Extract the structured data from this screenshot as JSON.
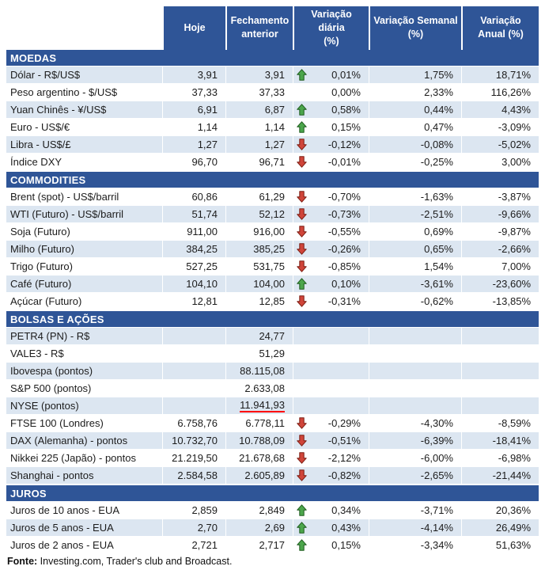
{
  "colors": {
    "header_bg": "#2F5597",
    "stripe_bg": "#DCE6F1",
    "arrow_up": "#4CA64C",
    "arrow_up_border": "#1E5C1E",
    "arrow_down": "#D0453A",
    "arrow_down_border": "#7C1D12",
    "underline_red": "#FF0000"
  },
  "table": {
    "columns": [
      "Hoje",
      "Fechamento\nanterior",
      "Variação diária\n(%)",
      "Variação Semanal\n(%)",
      "Variação\nAnual (%)"
    ],
    "sections": [
      {
        "title": "MOEDAS",
        "rows": [
          {
            "label": "Dólar - R$/US$",
            "hoje": "3,91",
            "fechamento": "3,91",
            "arrow": "up",
            "diaria": "0,01%",
            "semanal": "1,75%",
            "anual": "18,71%"
          },
          {
            "label": "Peso argentino - $/US$",
            "hoje": "37,33",
            "fechamento": "37,33",
            "arrow": "none",
            "diaria": "0,00%",
            "semanal": "2,33%",
            "anual": "116,26%"
          },
          {
            "label": "Yuan Chinês - ¥/US$",
            "hoje": "6,91",
            "fechamento": "6,87",
            "arrow": "up",
            "diaria": "0,58%",
            "semanal": "0,44%",
            "anual": "4,43%"
          },
          {
            "label": "Euro - US$/€",
            "hoje": "1,14",
            "fechamento": "1,14",
            "arrow": "up",
            "diaria": "0,15%",
            "semanal": "0,47%",
            "anual": "-3,09%"
          },
          {
            "label": "Libra - US$/£",
            "hoje": "1,27",
            "fechamento": "1,27",
            "arrow": "down",
            "diaria": "-0,12%",
            "semanal": "-0,08%",
            "anual": "-5,02%"
          },
          {
            "label": "Índice DXY",
            "hoje": "96,70",
            "fechamento": "96,71",
            "arrow": "down",
            "diaria": "-0,01%",
            "semanal": "-0,25%",
            "anual": "3,00%"
          }
        ]
      },
      {
        "title": "COMMODITIES",
        "rows": [
          {
            "label": "Brent (spot) - US$/barril",
            "hoje": "60,86",
            "fechamento": "61,29",
            "arrow": "down",
            "diaria": "-0,70%",
            "semanal": "-1,63%",
            "anual": "-3,87%"
          },
          {
            "label": "WTI (Futuro) - US$/barril",
            "hoje": "51,74",
            "fechamento": "52,12",
            "arrow": "down",
            "diaria": "-0,73%",
            "semanal": "-2,51%",
            "anual": "-9,66%"
          },
          {
            "label": "Soja (Futuro)",
            "hoje": "911,00",
            "fechamento": "916,00",
            "arrow": "down",
            "diaria": "-0,55%",
            "semanal": "0,69%",
            "anual": "-9,87%"
          },
          {
            "label": "Milho (Futuro)",
            "hoje": "384,25",
            "fechamento": "385,25",
            "arrow": "down",
            "diaria": "-0,26%",
            "semanal": "0,65%",
            "anual": "-2,66%"
          },
          {
            "label": "Trigo (Futuro)",
            "hoje": "527,25",
            "fechamento": "531,75",
            "arrow": "down",
            "diaria": "-0,85%",
            "semanal": "1,54%",
            "anual": "7,00%"
          },
          {
            "label": "Café (Futuro)",
            "hoje": "104,10",
            "fechamento": "104,00",
            "arrow": "up",
            "diaria": "0,10%",
            "semanal": "-3,61%",
            "anual": "-23,60%"
          },
          {
            "label": "Açúcar (Futuro)",
            "hoje": "12,81",
            "fechamento": "12,85",
            "arrow": "down",
            "diaria": "-0,31%",
            "semanal": "-0,62%",
            "anual": "-13,85%"
          }
        ]
      },
      {
        "title": "BOLSAS E AÇÕES",
        "rows": [
          {
            "label": "PETR4 (PN) - R$",
            "hoje": "",
            "fechamento": "24,77",
            "arrow": "none",
            "diaria": "",
            "semanal": "",
            "anual": ""
          },
          {
            "label": "VALE3 - R$",
            "hoje": "",
            "fechamento": "51,29",
            "arrow": "none",
            "diaria": "",
            "semanal": "",
            "anual": ""
          },
          {
            "label": "Ibovespa (pontos)",
            "hoje": "",
            "fechamento": "88.115,08",
            "arrow": "none",
            "diaria": "",
            "semanal": "",
            "anual": ""
          },
          {
            "label": "S&P 500 (pontos)",
            "hoje": "",
            "fechamento": "2.633,08",
            "arrow": "none",
            "diaria": "",
            "semanal": "",
            "anual": ""
          },
          {
            "label": "NYSE (pontos)",
            "hoje": "",
            "fechamento": "11.941,93",
            "arrow": "none",
            "diaria": "",
            "semanal": "",
            "anual": "",
            "underline": true
          },
          {
            "label": "FTSE 100 (Londres)",
            "hoje": "6.758,76",
            "fechamento": "6.778,11",
            "arrow": "down",
            "diaria": "-0,29%",
            "semanal": "-4,30%",
            "anual": "-8,59%"
          },
          {
            "label": "DAX (Alemanha) - pontos",
            "hoje": "10.732,70",
            "fechamento": "10.788,09",
            "arrow": "down",
            "diaria": "-0,51%",
            "semanal": "-6,39%",
            "anual": "-18,41%"
          },
          {
            "label": "Nikkei 225 (Japão) - pontos",
            "hoje": "21.219,50",
            "fechamento": "21.678,68",
            "arrow": "down",
            "diaria": "-2,12%",
            "semanal": "-6,00%",
            "anual": "-6,98%"
          },
          {
            "label": "Shanghai - pontos",
            "hoje": "2.584,58",
            "fechamento": "2.605,89",
            "arrow": "down",
            "diaria": "-0,82%",
            "semanal": "-2,65%",
            "anual": "-21,44%"
          }
        ]
      },
      {
        "title": "JUROS",
        "rows": [
          {
            "label": "Juros de 10 anos - EUA",
            "hoje": "2,859",
            "fechamento": "2,849",
            "arrow": "up",
            "diaria": "0,34%",
            "semanal": "-3,71%",
            "anual": "20,36%"
          },
          {
            "label": "Juros de 5 anos - EUA",
            "hoje": "2,70",
            "fechamento": "2,69",
            "arrow": "up",
            "diaria": "0,43%",
            "semanal": "-4,14%",
            "anual": "26,49%"
          },
          {
            "label": "Juros de 2 anos - EUA",
            "hoje": "2,721",
            "fechamento": "2,717",
            "arrow": "up",
            "diaria": "0,15%",
            "semanal": "-3,34%",
            "anual": "51,63%"
          }
        ]
      }
    ]
  },
  "footer": {
    "label": "Fonte:",
    "text": " Investing.com, Trader's club and Broadcast."
  }
}
